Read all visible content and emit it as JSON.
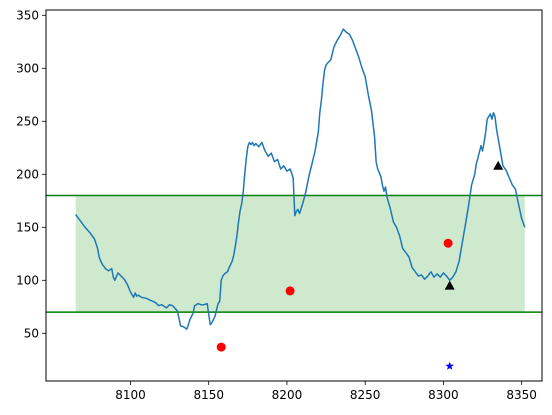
{
  "chart_data": {
    "type": "line",
    "xlim": [
      8046,
      8363
    ],
    "ylim": [
      5,
      355
    ],
    "x_ticks": [
      8100,
      8150,
      8200,
      8250,
      8300,
      8350
    ],
    "x_tick_labels": [
      "8100",
      "8150",
      "8200",
      "8250",
      "8300",
      "8350"
    ],
    "y_ticks": [
      50,
      100,
      150,
      200,
      250,
      300,
      350
    ],
    "y_tick_labels": [
      "50",
      "100",
      "150",
      "200",
      "250",
      "300",
      "350"
    ],
    "grid": false,
    "legend": "none",
    "band": {
      "y_low": 70,
      "y_high": 180,
      "x_start": 8065,
      "x_end": 8352,
      "color": "#2ca02c",
      "opacity": 0.23
    },
    "hlines": [
      {
        "y": 180,
        "color": "#007f00"
      },
      {
        "y": 70,
        "color": "#007f00"
      }
    ],
    "series": [
      {
        "kind": "line",
        "color": "#1f77b4",
        "x": [
          8065,
          8068,
          8071,
          8074,
          8077,
          8079,
          8080,
          8081,
          8082,
          8084,
          8086,
          8088,
          8089,
          8090,
          8092,
          8094,
          8096,
          8098,
          8100,
          8102,
          8103,
          8104,
          8105,
          8107,
          8110,
          8113,
          8116,
          8118,
          8120,
          8123,
          8125,
          8127,
          8130,
          8132,
          8134,
          8136,
          8137,
          8138,
          8140,
          8141,
          8142,
          8143,
          8145,
          8147,
          8149,
          8150,
          8151,
          8152,
          8153,
          8154,
          8155,
          8156,
          8157,
          8158,
          8159,
          8160,
          8162,
          8163,
          8165,
          8166,
          8167,
          8168,
          8169,
          8170,
          8171,
          8172,
          8173,
          8174,
          8175,
          8176,
          8177,
          8178,
          8179,
          8180,
          8182,
          8184,
          8186,
          8188,
          8190,
          8192,
          8194,
          8196,
          8198,
          8200,
          8202,
          8203,
          8204,
          8205,
          8206,
          8207,
          8208,
          8210,
          8212,
          8214,
          8216,
          8218,
          8220,
          8221,
          8222,
          8223,
          8224,
          8225,
          8226,
          8228,
          8230,
          8232,
          8234,
          8236,
          8238,
          8240,
          8242,
          8244,
          8246,
          8248,
          8250,
          8252,
          8254,
          8256,
          8257,
          8258,
          8260,
          8261,
          8262,
          8263,
          8264,
          8266,
          8268,
          8270,
          8272,
          8274,
          8276,
          8278,
          8280,
          8282,
          8284,
          8286,
          8288,
          8290,
          8292,
          8294,
          8296,
          8298,
          8300,
          8302,
          8304,
          8306,
          8308,
          8310,
          8312,
          8314,
          8316,
          8318,
          8320,
          8321,
          8322,
          8323,
          8324,
          8325,
          8326,
          8327,
          8328,
          8330,
          8331,
          8332,
          8333,
          8334,
          8336,
          8338,
          8340,
          8342,
          8344,
          8346,
          8348,
          8350,
          8352
        ],
        "y": [
          162,
          156,
          150,
          145,
          139,
          130,
          122,
          118,
          115,
          111,
          109,
          111,
          103,
          100,
          107,
          104,
          101,
          96,
          89,
          84,
          88,
          85,
          86,
          84,
          83,
          81,
          79,
          76,
          77,
          74,
          77,
          76,
          71,
          57,
          56,
          54,
          58,
          63,
          69,
          76,
          77,
          78,
          77,
          77,
          78,
          68,
          58,
          60,
          63,
          66,
          72,
          78,
          80,
          100,
          104,
          106,
          108,
          112,
          118,
          124,
          132,
          142,
          155,
          165,
          172,
          182,
          200,
          215,
          226,
          230,
          228,
          230,
          227,
          229,
          226,
          230,
          222,
          217,
          220,
          212,
          214,
          205,
          208,
          203,
          205,
          201,
          196,
          161,
          165,
          167,
          163,
          172,
          183,
          198,
          210,
          222,
          240,
          258,
          270,
          285,
          298,
          303,
          305,
          308,
          320,
          326,
          331,
          337,
          334,
          332,
          326,
          318,
          310,
          300,
          292,
          275,
          260,
          235,
          212,
          205,
          198,
          190,
          184,
          188,
          178,
          168,
          155,
          150,
          142,
          130,
          126,
          122,
          112,
          108,
          104,
          105,
          101,
          104,
          108,
          103,
          106,
          103,
          107,
          104,
          100,
          103,
          108,
          118,
          135,
          152,
          170,
          190,
          200,
          210,
          215,
          221,
          227,
          222,
          230,
          240,
          252,
          257,
          252,
          258,
          254,
          242,
          225,
          208,
          204,
          197,
          190,
          186,
          172,
          158,
          150
        ]
      },
      {
        "kind": "scatter",
        "marker": "circle",
        "color": "#ff0000",
        "points": [
          [
            8158,
            37
          ],
          [
            8202,
            90
          ],
          [
            8303,
            135
          ]
        ]
      },
      {
        "kind": "scatter",
        "marker": "triangle",
        "color": "#000000",
        "points": [
          [
            8304,
            95
          ],
          [
            8335,
            208
          ]
        ]
      },
      {
        "kind": "scatter",
        "marker": "star",
        "color": "#0000ff",
        "points": [
          [
            8304,
            19
          ]
        ]
      }
    ]
  }
}
